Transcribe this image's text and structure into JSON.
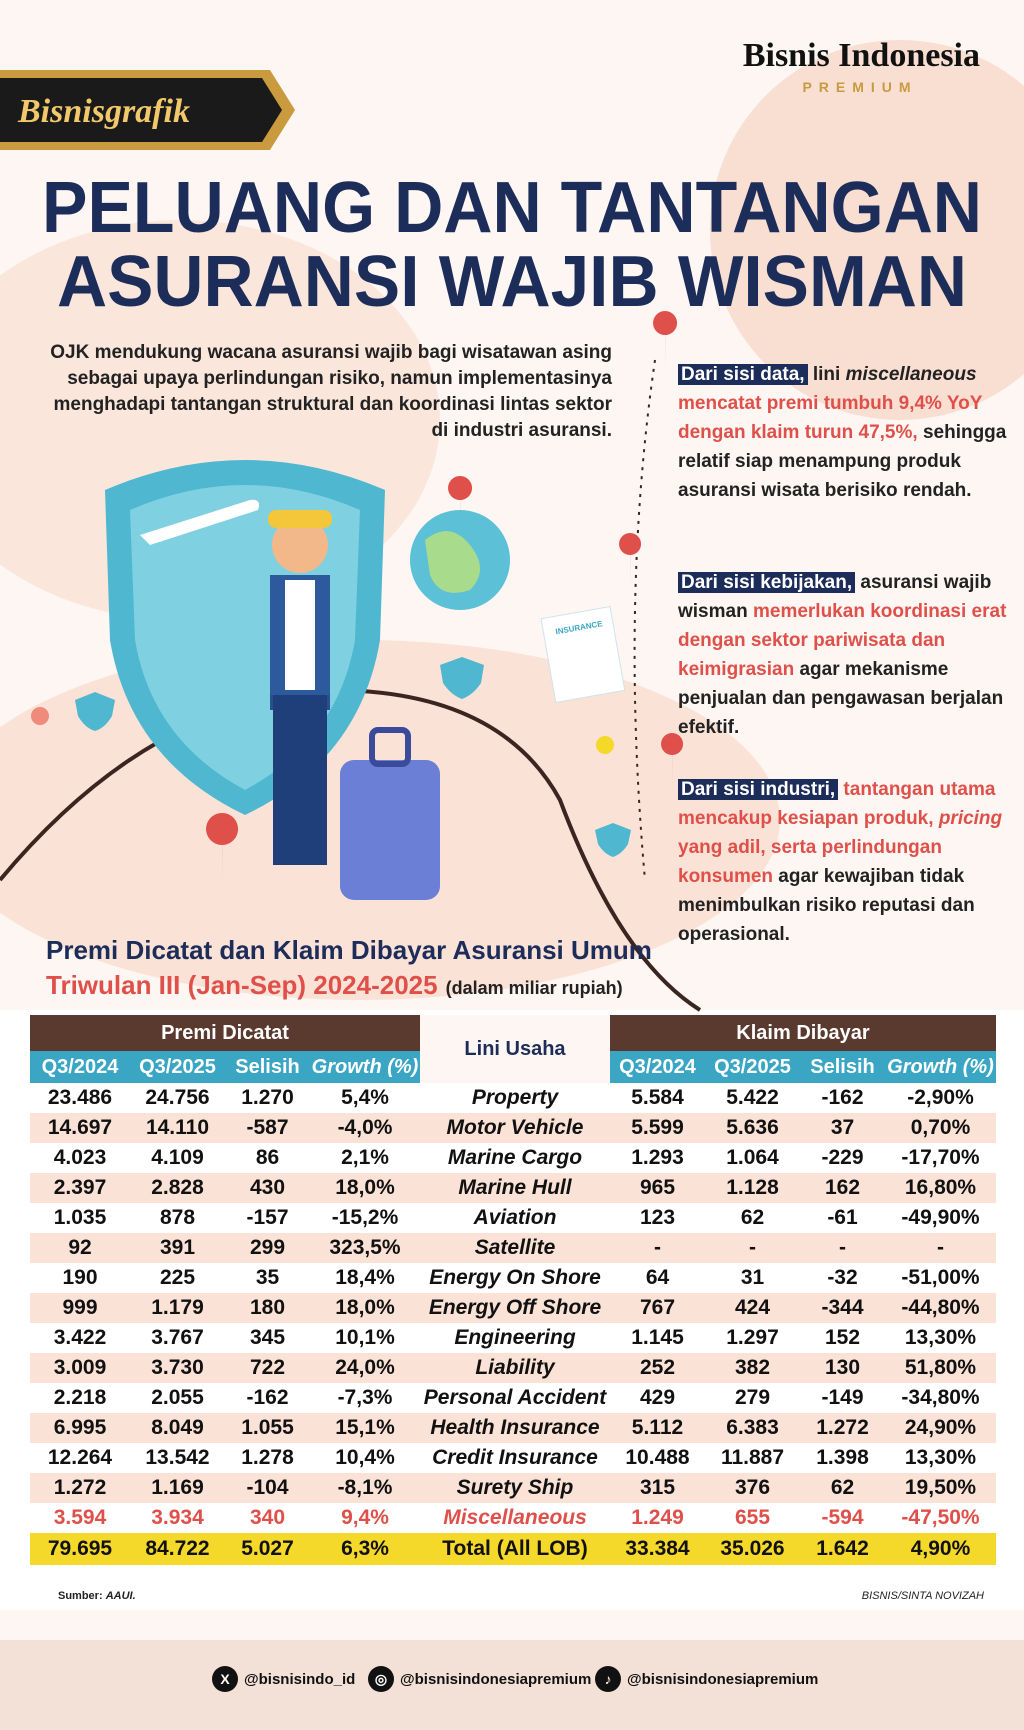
{
  "header": {
    "brand": "Bisnisgrafik",
    "logo": "Bisnis Indonesia",
    "logo_sub": "PREMIUM"
  },
  "title": [
    "PELUANG DAN TANTANGAN",
    "ASURANSI WAJIB WISMAN"
  ],
  "intro": "OJK mendukung wacana asuransi wajib bagi wisatawan asing sebagai upaya perlindungan risiko, namun implementasinya menghadapi tantangan struktural dan koordinasi lintas sektor di industri asuransi.",
  "illustration": {
    "document_label": "INSURANCE"
  },
  "points": [
    {
      "runs": [
        {
          "text": "Dari sisi data,",
          "style": "tag"
        },
        {
          "text": " lini ",
          "style": "plain"
        },
        {
          "text": "miscellaneous",
          "style": "italic"
        },
        {
          "text": " mencatat premi tumbuh 9,4% YoY dengan klaim turun 47,5%,",
          "style": "red"
        },
        {
          "text": " sehingga relatif siap menampung produk asuransi wisata berisiko rendah.",
          "style": "plain"
        }
      ]
    },
    {
      "runs": [
        {
          "text": "Dari sisi kebijakan,",
          "style": "tag"
        },
        {
          "text": " asuransi wajib wisman ",
          "style": "plain"
        },
        {
          "text": "memerlukan koordinasi erat dengan sektor pariwisata dan keimigrasian",
          "style": "red"
        },
        {
          "text": " agar mekanisme penjualan dan pengawasan berjalan efektif.",
          "style": "plain"
        }
      ]
    },
    {
      "runs": [
        {
          "text": "Dari sisi industri,",
          "style": "tag"
        },
        {
          "text": " tantangan utama mencakup kesiapan produk, ",
          "style": "red"
        },
        {
          "text": "pricing",
          "style": "red-italic"
        },
        {
          "text": " yang adil, serta perlindungan konsumen",
          "style": "red"
        },
        {
          "text": " agar kewajiban tidak menimbulkan risiko reputasi dan operasional.",
          "style": "plain"
        }
      ]
    }
  ],
  "table": {
    "title": "Premi Dicatat dan Klaim Dibayar Asuransi Umum",
    "subtitle": "Triwulan III (Jan-Sep) 2024-2025",
    "unit": "(dalam miliar rupiah)",
    "groups": [
      "Premi Dicatat",
      "Lini Usaha",
      "Klaim Dibayar"
    ],
    "columns": [
      "Q3/2024",
      "Q3/2025",
      "Selisih",
      "Growth (%)",
      "Q3/2024",
      "Q3/2025",
      "Selisih",
      "Growth (%)"
    ],
    "rows": [
      [
        "23.486",
        "24.756",
        "1.270",
        "5,4%",
        "Property",
        "5.584",
        "5.422",
        "-162",
        "-2,90%"
      ],
      [
        "14.697",
        "14.110",
        "-587",
        "-4,0%",
        "Motor Vehicle",
        "5.599",
        "5.636",
        "37",
        "0,70%"
      ],
      [
        "4.023",
        "4.109",
        "86",
        "2,1%",
        "Marine Cargo",
        "1.293",
        "1.064",
        "-229",
        "-17,70%"
      ],
      [
        "2.397",
        "2.828",
        "430",
        "18,0%",
        "Marine Hull",
        "965",
        "1.128",
        "162",
        "16,80%"
      ],
      [
        "1.035",
        "878",
        "-157",
        "-15,2%",
        "Aviation",
        "123",
        "62",
        "-61",
        "-49,90%"
      ],
      [
        "92",
        "391",
        "299",
        "323,5%",
        "Satellite",
        "-",
        "-",
        "-",
        "-"
      ],
      [
        "190",
        "225",
        "35",
        "18,4%",
        "Energy On Shore",
        "64",
        "31",
        "-32",
        "-51,00%"
      ],
      [
        "999",
        "1.179",
        "180",
        "18,0%",
        "Energy Off Shore",
        "767",
        "424",
        "-344",
        "-44,80%"
      ],
      [
        "3.422",
        "3.767",
        "345",
        "10,1%",
        "Engineering",
        "1.145",
        "1.297",
        "152",
        "13,30%"
      ],
      [
        "3.009",
        "3.730",
        "722",
        "24,0%",
        "Liability",
        "252",
        "382",
        "130",
        "51,80%"
      ],
      [
        "2.218",
        "2.055",
        "-162",
        "-7,3%",
        "Personal Accident",
        "429",
        "279",
        "-149",
        "-34,80%"
      ],
      [
        "6.995",
        "8.049",
        "1.055",
        "15,1%",
        "Health Insurance",
        "5.112",
        "6.383",
        "1.272",
        "24,90%"
      ],
      [
        "12.264",
        "13.542",
        "1.278",
        "10,4%",
        "Credit Insurance",
        "10.488",
        "11.887",
        "1.398",
        "13,30%"
      ],
      [
        "1.272",
        "1.169",
        "-104",
        "-8,1%",
        "Surety Ship",
        "315",
        "376",
        "62",
        "19,50%"
      ],
      [
        "3.594",
        "3.934",
        "340",
        "9,4%",
        "Miscellaneous",
        "1.249",
        "655",
        "-594",
        "-47,50%"
      ]
    ],
    "highlight_row": 14,
    "total": [
      "79.695",
      "84.722",
      "5.027",
      "6,3%",
      "Total (All LOB)",
      "33.384",
      "35.026",
      "1.642",
      "4,90%"
    ]
  },
  "source_label": "Sumber:",
  "source": "AAUI.",
  "credit": "BISNIS/SINTA NOVIZAH",
  "social": [
    "@bisnisindo_id",
    "@bisnisindonesiapremium",
    "@bisnisindonesiapremium"
  ]
}
